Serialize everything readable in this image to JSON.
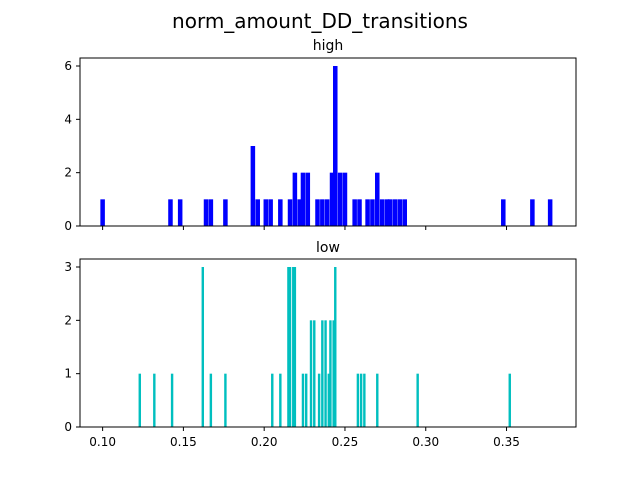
{
  "figure": {
    "title": "norm_amount_DD_transitions"
  },
  "chart_data": [
    {
      "type": "bar",
      "title": "high",
      "color": "#0000ff",
      "bin_width": 0.0028,
      "xlim": [
        0.086,
        0.393
      ],
      "ylim": [
        0,
        6.3
      ],
      "yticks": [
        0,
        2,
        4,
        6
      ],
      "xticks": [
        0.1,
        0.15,
        0.2,
        0.25,
        0.3,
        0.35
      ],
      "show_xtick_labels": false,
      "x": [
        0.1,
        0.142,
        0.148,
        0.164,
        0.167,
        0.176,
        0.193,
        0.196,
        0.201,
        0.204,
        0.207,
        0.21,
        0.213,
        0.216,
        0.219,
        0.222,
        0.224,
        0.227,
        0.23,
        0.233,
        0.236,
        0.239,
        0.242,
        0.244,
        0.247,
        0.25,
        0.253,
        0.256,
        0.259,
        0.264,
        0.267,
        0.27,
        0.273,
        0.276,
        0.278,
        0.281,
        0.284,
        0.287,
        0.348,
        0.366,
        0.377
      ],
      "values": [
        1,
        1,
        1,
        1,
        1,
        1,
        3,
        1,
        1,
        1,
        0,
        1,
        0,
        1,
        2,
        1,
        2,
        2,
        0,
        1,
        1,
        1,
        2,
        6,
        2,
        2,
        0,
        1,
        1,
        1,
        1,
        2,
        1,
        1,
        1,
        1,
        1,
        1,
        1,
        1,
        1
      ]
    },
    {
      "type": "bar",
      "title": "low",
      "color": "#00bfbf",
      "bin_width": 0.0015,
      "xlim": [
        0.086,
        0.393
      ],
      "ylim": [
        0,
        3.15
      ],
      "yticks": [
        0,
        1,
        2,
        3
      ],
      "xticks": [
        0.1,
        0.15,
        0.2,
        0.25,
        0.3,
        0.35
      ],
      "xtick_labels": [
        "0.10",
        "0.15",
        "0.20",
        "0.25",
        "0.30",
        "0.35"
      ],
      "show_xtick_labels": true,
      "x": [
        0.123,
        0.132,
        0.143,
        0.162,
        0.167,
        0.176,
        0.205,
        0.21,
        0.215,
        0.216,
        0.218,
        0.219,
        0.224,
        0.226,
        0.229,
        0.231,
        0.234,
        0.236,
        0.238,
        0.24,
        0.241,
        0.243,
        0.244,
        0.258,
        0.26,
        0.262,
        0.27,
        0.295,
        0.352
      ],
      "values": [
        1,
        1,
        1,
        3,
        1,
        1,
        1,
        1,
        3,
        3,
        3,
        3,
        1,
        1,
        2,
        2,
        1,
        2,
        2,
        1,
        2,
        2,
        3,
        1,
        1,
        1,
        1,
        1,
        1
      ]
    }
  ]
}
